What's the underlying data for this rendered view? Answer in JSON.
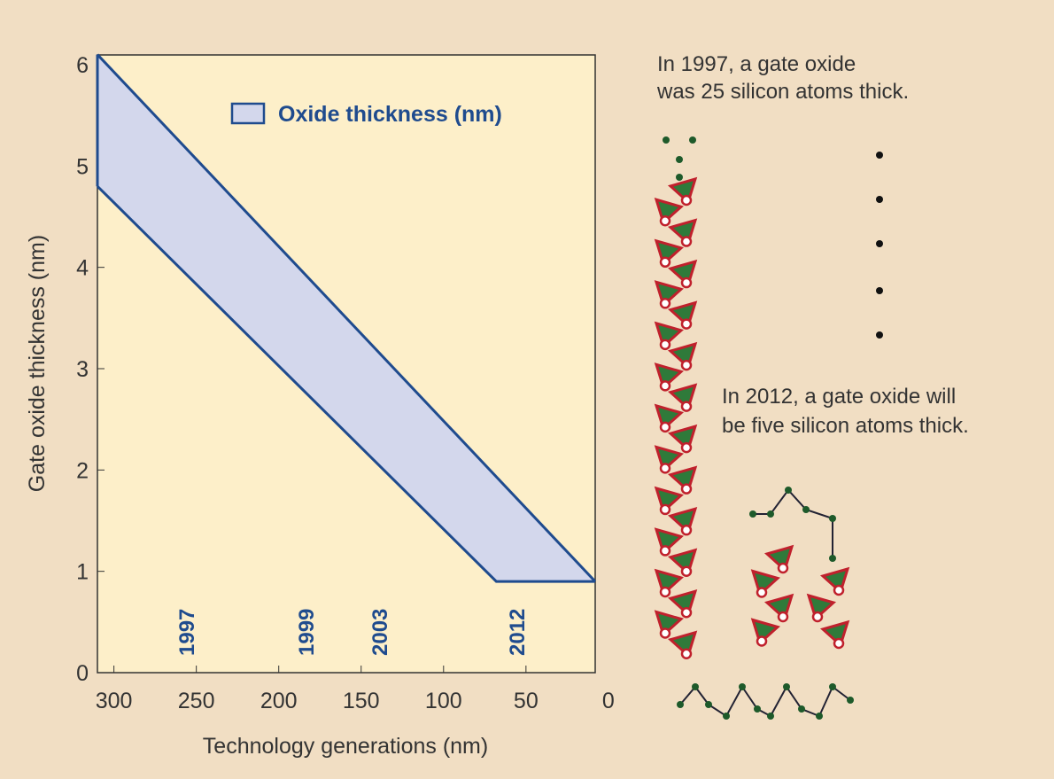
{
  "chart_data": {
    "type": "band",
    "legend": "Oxide thickness (nm)",
    "xlabel": "Technology generations (nm)",
    "ylabel": "Gate oxide thickness (nm)",
    "xlim": [
      310,
      8
    ],
    "xticks": [
      300,
      250,
      200,
      150,
      100,
      50,
      0
    ],
    "ylim": [
      0,
      6
    ],
    "yticks": [
      0,
      1,
      2,
      3,
      4,
      5,
      6
    ],
    "color": "#1f4b8e",
    "fill": "#d3d7ec",
    "upper": {
      "x": [
        310,
        8
      ],
      "values": [
        6.1,
        0.9
      ]
    },
    "lower": {
      "x": [
        310,
        68,
        8
      ],
      "values": [
        4.8,
        0.9,
        0.9
      ]
    },
    "annotations": [
      "1997",
      "1999",
      "2003",
      "2012"
    ],
    "notes": [
      "In 1997, a gate oxide",
      "was 25 silicon atoms thick.",
      "In 2012, a gate oxide will",
      "be five silicon atoms thick."
    ]
  }
}
